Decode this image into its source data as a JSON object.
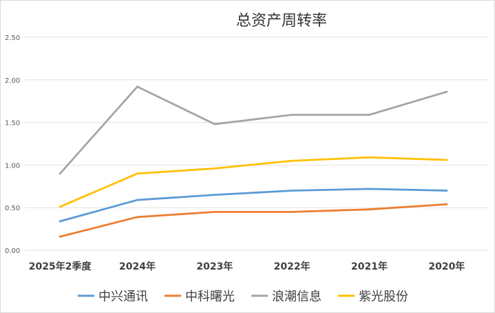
{
  "chart_data": {
    "type": "line",
    "title": "总资产周转率",
    "xlabel": "",
    "ylabel": "",
    "categories": [
      "2025年2季度",
      "2024年",
      "2023年",
      "2022年",
      "2021年",
      "2020年"
    ],
    "ylim": [
      0,
      2.5
    ],
    "yticks": [
      "0.00",
      "0.50",
      "1.00",
      "1.50",
      "2.00",
      "2.50"
    ],
    "grid": true,
    "legend_position": "bottom",
    "series": [
      {
        "name": "中兴通讯",
        "color": "#5B9BD5",
        "values": [
          0.34,
          0.59,
          0.65,
          0.7,
          0.72,
          0.7
        ]
      },
      {
        "name": "中科曙光",
        "color": "#ED7D31",
        "values": [
          0.16,
          0.39,
          0.45,
          0.45,
          0.48,
          0.54
        ]
      },
      {
        "name": "浪潮信息",
        "color": "#A5A5A5",
        "values": [
          0.9,
          1.92,
          1.48,
          1.59,
          1.59,
          1.86
        ]
      },
      {
        "name": "紫光股份",
        "color": "#FFC000",
        "values": [
          0.51,
          0.9,
          0.96,
          1.05,
          1.09,
          1.06
        ]
      }
    ]
  }
}
